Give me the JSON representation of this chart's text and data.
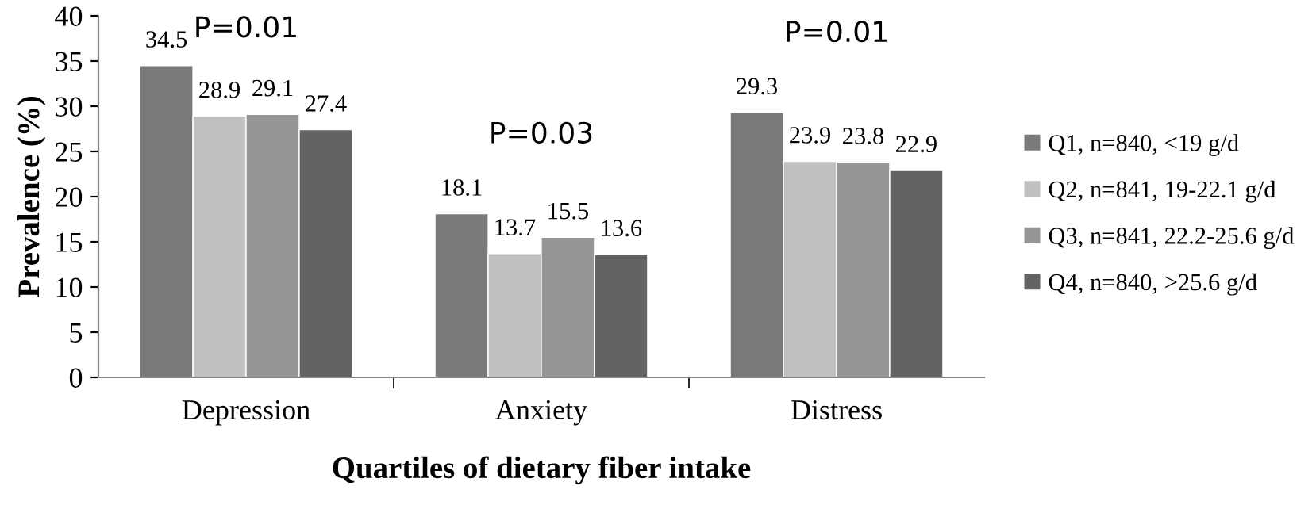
{
  "chart_data": {
    "type": "bar",
    "ylabel": "Prevalence (%)",
    "xlabel": "Quartiles of dietary fiber intake",
    "categories": [
      "Depression",
      "Anxiety",
      "Distress"
    ],
    "series": [
      {
        "name": "Q1, n=840, <19 g/d",
        "color": "#7a7a7a",
        "values": [
          34.5,
          18.1,
          29.3
        ]
      },
      {
        "name": "Q2, n=841, 19-22.1 g/d",
        "color": "#c0c0c0",
        "values": [
          28.9,
          13.7,
          23.9
        ]
      },
      {
        "name": "Q3, n=841, 22.2-25.6 g/d",
        "color": "#969696",
        "values": [
          29.1,
          15.5,
          23.8
        ]
      },
      {
        "name": "Q4, n=840, >25.6 g/d",
        "color": "#636363",
        "values": [
          27.4,
          13.6,
          22.9
        ]
      }
    ],
    "ylim": [
      0,
      40
    ],
    "yticks": [
      0,
      5,
      10,
      15,
      20,
      25,
      30,
      35,
      40
    ],
    "grid": false,
    "legend": "right",
    "data_labels": true,
    "annotations": [
      "P=0.01",
      "P=0.03",
      "P=0.01"
    ]
  }
}
